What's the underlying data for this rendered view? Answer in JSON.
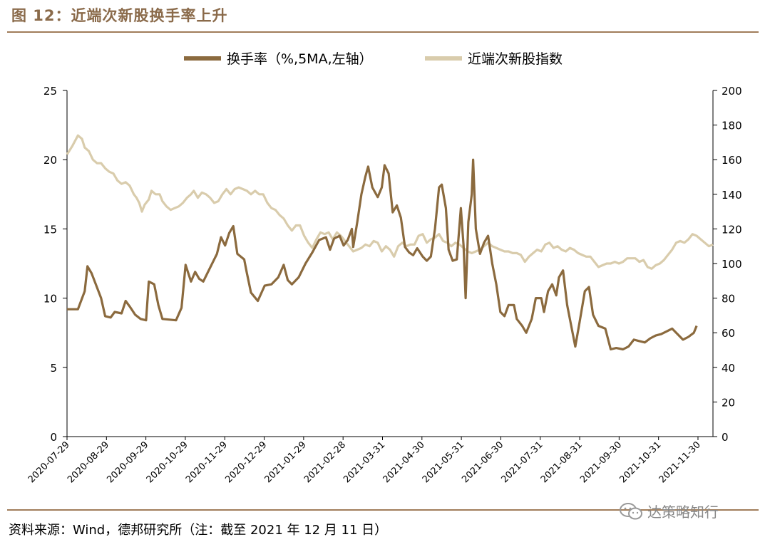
{
  "figure_title": "图 12：近端次新股换手率上升",
  "source_note": "资料来源：Wind，德邦研究所（注：截至 2021 年 12 月 11 日）",
  "watermark_text": "达策略知行",
  "colors": {
    "turnover": "#8b6a3e",
    "index": "#d9ccac",
    "accent": "#a07d5a",
    "axis": "#000000"
  },
  "chart_data": {
    "type": "line",
    "title": "",
    "legend_position": "top",
    "x_tick_labels": [
      "2020-07-29",
      "2020-08-29",
      "2020-09-29",
      "2020-10-29",
      "2020-11-29",
      "2020-12-29",
      "2021-01-29",
      "2021-02-28",
      "2021-03-31",
      "2021-04-30",
      "2021-05-31",
      "2021-06-30",
      "2021-07-31",
      "2021-08-31",
      "2021-09-30",
      "2021-10-31",
      "2021-11-30"
    ],
    "y_left": {
      "label": "换手率",
      "range": [
        0,
        25
      ],
      "ticks": [
        0,
        5,
        10,
        15,
        20,
        25
      ]
    },
    "y_right": {
      "label": "近端次新股指数",
      "range": [
        0,
        200
      ],
      "ticks": [
        0,
        20,
        40,
        60,
        80,
        100,
        120,
        140,
        160,
        180,
        200
      ]
    },
    "series": [
      {
        "name": "换手率（%,5MA,左轴）",
        "axis": "left",
        "points": [
          [
            0,
            9.2
          ],
          [
            0.8,
            9.2
          ],
          [
            1.3,
            10.5
          ],
          [
            1.5,
            12.3
          ],
          [
            1.8,
            11.8
          ],
          [
            2.5,
            10.0
          ],
          [
            2.8,
            8.7
          ],
          [
            3.2,
            8.6
          ],
          [
            3.5,
            9.0
          ],
          [
            4.0,
            8.9
          ],
          [
            4.3,
            9.8
          ],
          [
            4.6,
            9.4
          ],
          [
            5.0,
            8.8
          ],
          [
            5.4,
            8.5
          ],
          [
            5.8,
            8.4
          ],
          [
            6.0,
            11.2
          ],
          [
            6.4,
            11.0
          ],
          [
            6.7,
            9.5
          ],
          [
            7.0,
            8.5
          ],
          [
            8.0,
            8.4
          ],
          [
            8.4,
            9.3
          ],
          [
            8.7,
            12.4
          ],
          [
            9.1,
            11.2
          ],
          [
            9.4,
            11.9
          ],
          [
            9.7,
            11.4
          ],
          [
            10.0,
            11.2
          ],
          [
            10.5,
            12.2
          ],
          [
            11.0,
            13.2
          ],
          [
            11.3,
            14.4
          ],
          [
            11.6,
            13.8
          ],
          [
            11.9,
            14.7
          ],
          [
            12.2,
            15.2
          ],
          [
            12.5,
            13.2
          ],
          [
            13.0,
            12.8
          ],
          [
            13.2,
            11.8
          ],
          [
            13.5,
            10.4
          ],
          [
            14.0,
            9.8
          ],
          [
            14.5,
            10.9
          ],
          [
            15.0,
            11.0
          ],
          [
            15.5,
            11.5
          ],
          [
            15.9,
            12.4
          ],
          [
            16.2,
            11.3
          ],
          [
            16.5,
            11.0
          ],
          [
            17.0,
            11.5
          ],
          [
            17.5,
            12.5
          ],
          [
            18.0,
            13.3
          ],
          [
            18.5,
            14.2
          ],
          [
            19.0,
            14.4
          ],
          [
            19.3,
            13.5
          ],
          [
            19.6,
            14.3
          ],
          [
            20.0,
            14.5
          ],
          [
            20.3,
            13.8
          ],
          [
            20.6,
            14.2
          ],
          [
            20.9,
            15.0
          ],
          [
            21.0,
            13.7
          ],
          [
            21.3,
            15.5
          ],
          [
            21.6,
            17.5
          ],
          [
            21.9,
            18.8
          ],
          [
            22.1,
            19.5
          ],
          [
            22.4,
            18.0
          ],
          [
            22.8,
            17.3
          ],
          [
            23.1,
            18.0
          ],
          [
            23.3,
            19.6
          ],
          [
            23.6,
            19.0
          ],
          [
            23.9,
            16.2
          ],
          [
            24.2,
            16.7
          ],
          [
            24.5,
            15.8
          ],
          [
            24.8,
            13.7
          ],
          [
            25.1,
            13.3
          ],
          [
            25.4,
            13.1
          ],
          [
            25.7,
            13.6
          ],
          [
            26.1,
            13.0
          ],
          [
            26.4,
            12.7
          ],
          [
            26.7,
            13.0
          ],
          [
            27.0,
            15.0
          ],
          [
            27.3,
            18.0
          ],
          [
            27.5,
            18.2
          ],
          [
            27.8,
            16.5
          ],
          [
            28.0,
            13.5
          ],
          [
            28.3,
            12.7
          ],
          [
            28.6,
            12.8
          ],
          [
            28.9,
            16.5
          ],
          [
            29.1,
            13.8
          ],
          [
            29.25,
            10.0
          ],
          [
            29.45,
            15.5
          ],
          [
            29.7,
            17.5
          ],
          [
            29.8,
            20.0
          ],
          [
            30.0,
            15.0
          ],
          [
            30.3,
            13.2
          ],
          [
            30.6,
            14.0
          ],
          [
            30.9,
            14.5
          ],
          [
            31.2,
            12.5
          ],
          [
            31.5,
            11.0
          ],
          [
            31.8,
            9.0
          ],
          [
            32.1,
            8.7
          ],
          [
            32.4,
            9.5
          ],
          [
            32.8,
            9.5
          ],
          [
            33.0,
            8.5
          ],
          [
            33.4,
            8.0
          ],
          [
            33.7,
            7.5
          ],
          [
            34.1,
            8.5
          ],
          [
            34.4,
            10.0
          ],
          [
            34.8,
            10.0
          ],
          [
            35.0,
            9.0
          ],
          [
            35.3,
            10.5
          ],
          [
            35.6,
            11.0
          ],
          [
            35.9,
            10.2
          ],
          [
            36.1,
            11.5
          ],
          [
            36.4,
            12.0
          ],
          [
            36.7,
            9.5
          ],
          [
            37.0,
            8.0
          ],
          [
            37.3,
            6.5
          ],
          [
            37.6,
            8.2
          ],
          [
            38.0,
            10.5
          ],
          [
            38.3,
            10.8
          ],
          [
            38.6,
            8.8
          ],
          [
            39.0,
            8.0
          ],
          [
            39.5,
            7.8
          ],
          [
            39.9,
            6.3
          ],
          [
            40.3,
            6.4
          ],
          [
            40.8,
            6.3
          ],
          [
            41.2,
            6.5
          ],
          [
            41.6,
            7.0
          ],
          [
            42.0,
            6.9
          ],
          [
            42.4,
            6.8
          ],
          [
            42.8,
            7.1
          ],
          [
            43.2,
            7.3
          ],
          [
            43.6,
            7.4
          ],
          [
            44.0,
            7.6
          ],
          [
            44.4,
            7.8
          ],
          [
            44.8,
            7.4
          ],
          [
            45.2,
            7.0
          ],
          [
            45.6,
            7.2
          ],
          [
            46.0,
            7.5
          ],
          [
            46.2,
            8.0
          ]
        ]
      },
      {
        "name": "近端次新股指数",
        "axis": "right",
        "points": [
          [
            0,
            163
          ],
          [
            0.4,
            168
          ],
          [
            0.8,
            174
          ],
          [
            1.1,
            172
          ],
          [
            1.3,
            167
          ],
          [
            1.6,
            165
          ],
          [
            1.9,
            160
          ],
          [
            2.2,
            158
          ],
          [
            2.5,
            158
          ],
          [
            2.8,
            155
          ],
          [
            3.1,
            153
          ],
          [
            3.4,
            152
          ],
          [
            3.7,
            148
          ],
          [
            4.0,
            146
          ],
          [
            4.3,
            147
          ],
          [
            4.6,
            145
          ],
          [
            4.9,
            140
          ],
          [
            5.1,
            138
          ],
          [
            5.3,
            135
          ],
          [
            5.5,
            130
          ],
          [
            5.7,
            134
          ],
          [
            6.0,
            137
          ],
          [
            6.2,
            142
          ],
          [
            6.5,
            140
          ],
          [
            6.8,
            140
          ],
          [
            7.0,
            136
          ],
          [
            7.3,
            133
          ],
          [
            7.6,
            131
          ],
          [
            7.9,
            132
          ],
          [
            8.2,
            133
          ],
          [
            8.5,
            135
          ],
          [
            8.8,
            138
          ],
          [
            9.1,
            140
          ],
          [
            9.3,
            142
          ],
          [
            9.6,
            138
          ],
          [
            9.9,
            141
          ],
          [
            10.2,
            140
          ],
          [
            10.5,
            138
          ],
          [
            10.8,
            135
          ],
          [
            11.1,
            136
          ],
          [
            11.4,
            140
          ],
          [
            11.7,
            143
          ],
          [
            12.0,
            140
          ],
          [
            12.3,
            143
          ],
          [
            12.6,
            144
          ],
          [
            12.9,
            143
          ],
          [
            13.2,
            142
          ],
          [
            13.5,
            140
          ],
          [
            13.8,
            142
          ],
          [
            14.1,
            140
          ],
          [
            14.4,
            140
          ],
          [
            14.7,
            135
          ],
          [
            15.0,
            132
          ],
          [
            15.3,
            131
          ],
          [
            15.6,
            128
          ],
          [
            15.9,
            126
          ],
          [
            16.2,
            122
          ],
          [
            16.5,
            119
          ],
          [
            16.8,
            122
          ],
          [
            17.1,
            122
          ],
          [
            17.4,
            116
          ],
          [
            17.7,
            112
          ],
          [
            18.0,
            109
          ],
          [
            18.3,
            114
          ],
          [
            18.6,
            118
          ],
          [
            18.9,
            117
          ],
          [
            19.2,
            118
          ],
          [
            19.5,
            114
          ],
          [
            19.8,
            118
          ],
          [
            20.1,
            116
          ],
          [
            20.4,
            113
          ],
          [
            20.7,
            110
          ],
          [
            21.0,
            107
          ],
          [
            21.3,
            108
          ],
          [
            21.6,
            109
          ],
          [
            21.9,
            111
          ],
          [
            22.2,
            110
          ],
          [
            22.5,
            113
          ],
          [
            22.8,
            112
          ],
          [
            23.1,
            107
          ],
          [
            23.4,
            110
          ],
          [
            23.7,
            108
          ],
          [
            24.0,
            104
          ],
          [
            24.3,
            110
          ],
          [
            24.6,
            112
          ],
          [
            24.9,
            110
          ],
          [
            25.2,
            111
          ],
          [
            25.5,
            111
          ],
          [
            25.8,
            116
          ],
          [
            26.1,
            117
          ],
          [
            26.4,
            112
          ],
          [
            26.7,
            114
          ],
          [
            27.0,
            115
          ],
          [
            27.3,
            117
          ],
          [
            27.6,
            113
          ],
          [
            27.9,
            112
          ],
          [
            28.2,
            110
          ],
          [
            28.5,
            112
          ],
          [
            28.8,
            111
          ],
          [
            29.1,
            109
          ],
          [
            29.4,
            107
          ],
          [
            29.7,
            106
          ],
          [
            30.0,
            107
          ],
          [
            30.3,
            108
          ],
          [
            30.6,
            110
          ],
          [
            30.9,
            112
          ],
          [
            31.2,
            110
          ],
          [
            31.5,
            109
          ],
          [
            31.8,
            108
          ],
          [
            32.1,
            107
          ],
          [
            32.4,
            107
          ],
          [
            32.7,
            106
          ],
          [
            33.0,
            106
          ],
          [
            33.3,
            105
          ],
          [
            33.6,
            101
          ],
          [
            33.9,
            104
          ],
          [
            34.2,
            106
          ],
          [
            34.5,
            108
          ],
          [
            34.8,
            107
          ],
          [
            35.1,
            111
          ],
          [
            35.4,
            112
          ],
          [
            35.7,
            109
          ],
          [
            36.0,
            110
          ],
          [
            36.3,
            108
          ],
          [
            36.6,
            107
          ],
          [
            36.9,
            109
          ],
          [
            37.2,
            108
          ],
          [
            37.5,
            106
          ],
          [
            37.8,
            105
          ],
          [
            38.1,
            104
          ],
          [
            38.4,
            104
          ],
          [
            38.7,
            101
          ],
          [
            39.0,
            98
          ],
          [
            39.3,
            99
          ],
          [
            39.6,
            100
          ],
          [
            39.9,
            100
          ],
          [
            40.2,
            101
          ],
          [
            40.5,
            100
          ],
          [
            40.8,
            101
          ],
          [
            41.1,
            103
          ],
          [
            41.4,
            103
          ],
          [
            41.7,
            103
          ],
          [
            42.0,
            101
          ],
          [
            42.3,
            102
          ],
          [
            42.6,
            98
          ],
          [
            42.9,
            97
          ],
          [
            43.2,
            99
          ],
          [
            43.5,
            100
          ],
          [
            43.8,
            102
          ],
          [
            44.1,
            105
          ],
          [
            44.4,
            108
          ],
          [
            44.7,
            112
          ],
          [
            45.0,
            113
          ],
          [
            45.3,
            112
          ],
          [
            45.6,
            114
          ],
          [
            45.9,
            117
          ],
          [
            46.2,
            116
          ],
          [
            46.5,
            114
          ],
          [
            46.8,
            112
          ],
          [
            47.1,
            110
          ],
          [
            47.4,
            111
          ]
        ]
      }
    ]
  }
}
